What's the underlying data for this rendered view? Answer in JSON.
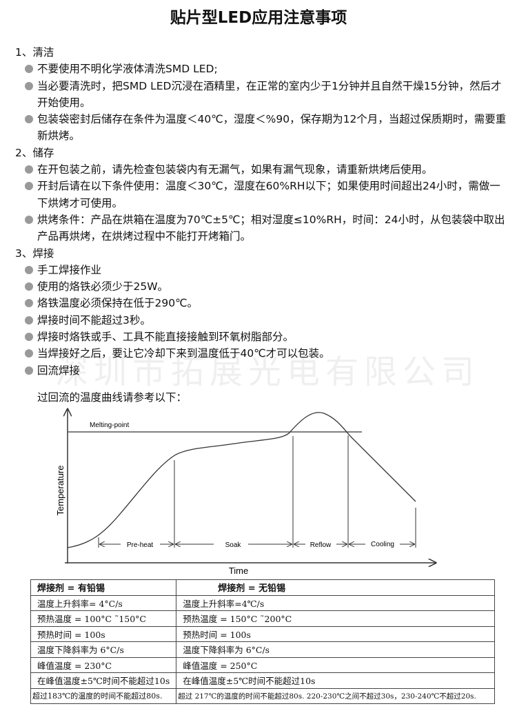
{
  "title": "贴片型LED应用注意事项",
  "sections": [
    {
      "heading": "1、清洁",
      "items": [
        "不要使用不明化学液体清洗SMD LED;",
        "当必要清洗时，把SMD LED沉浸在酒精里，在正常的室内少于1分钟并且自然干燥15分钟，然后才开始使用。",
        "包装袋密封后储存在条件为温度＜40℃，湿度＜%90，保存期为12个月，当超过保质期时，需要重新烘烤。"
      ]
    },
    {
      "heading": "2、储存",
      "items": [
        "在开包装之前，请先检查包装袋内有无漏气，如果有漏气现象，请重新烘烤后使用。",
        "开封后请在以下条件使用：温度＜30℃，湿度在60%RH以下；如果使用时间超出24小时，需做一下烘烤才可使用。",
        "烘烤条件：产品在烘箱在温度为70℃±5℃；相对湿度≤10%RH，时间：24小时，从包装袋中取出产品再烘烤，在烘烤过程中不能打开烤箱门。"
      ]
    },
    {
      "heading": "3、焊接",
      "items": [
        "手工焊接作业",
        "使用的烙铁必须少于25W。",
        "烙铁温度必须保持在低于290℃。",
        "焊接时间不能超过3秒。",
        "焊接时烙铁或手、工具不能直接接触到环氧树脂部分。",
        "当焊接好之后，要让它冷却下来到温度低于40℃才可以包装。",
        "回流焊接"
      ],
      "note": "过回流的温度曲线请参考以下："
    }
  ],
  "watermark": "深圳市拓展光电有限公司",
  "diagram": {
    "y_label": "Temperature",
    "x_label": "Time",
    "melting_label": "Melting-point",
    "phases": [
      "Pre-heat",
      "Soak",
      "Reflow",
      "Cooling"
    ]
  },
  "table": {
    "headers": [
      "焊接剂 = 有铅锡",
      "焊接剂 = 无铅锡"
    ],
    "rows": [
      [
        "温度上升斜率= 4°C/s",
        "温度上升斜率=4℃/s"
      ],
      [
        "预热温度 = 100°C ˜150°C",
        "预热温度 = 150°C ˜200°C"
      ],
      [
        "预热时间 = 100s",
        "预热时间 = 100s"
      ],
      [
        "温度下降斜率为 6°C/s",
        "温度下降斜率为 6°C/s"
      ],
      [
        "峰值温度 = 230°C",
        "峰值温度 = 250°C"
      ],
      [
        "在峰值温度±5℃时间不能超过10s",
        "在峰值温度±5℃时间不能超过10s"
      ],
      [
        "超过183℃的温度的时间不能超过80s.",
        "超过 217℃的温度的时间不能超过80s. 220-230℃之间不超过30s，230-240℃不超过20s."
      ]
    ]
  },
  "colors": {
    "bullet": "#999999",
    "line": "#333333"
  }
}
